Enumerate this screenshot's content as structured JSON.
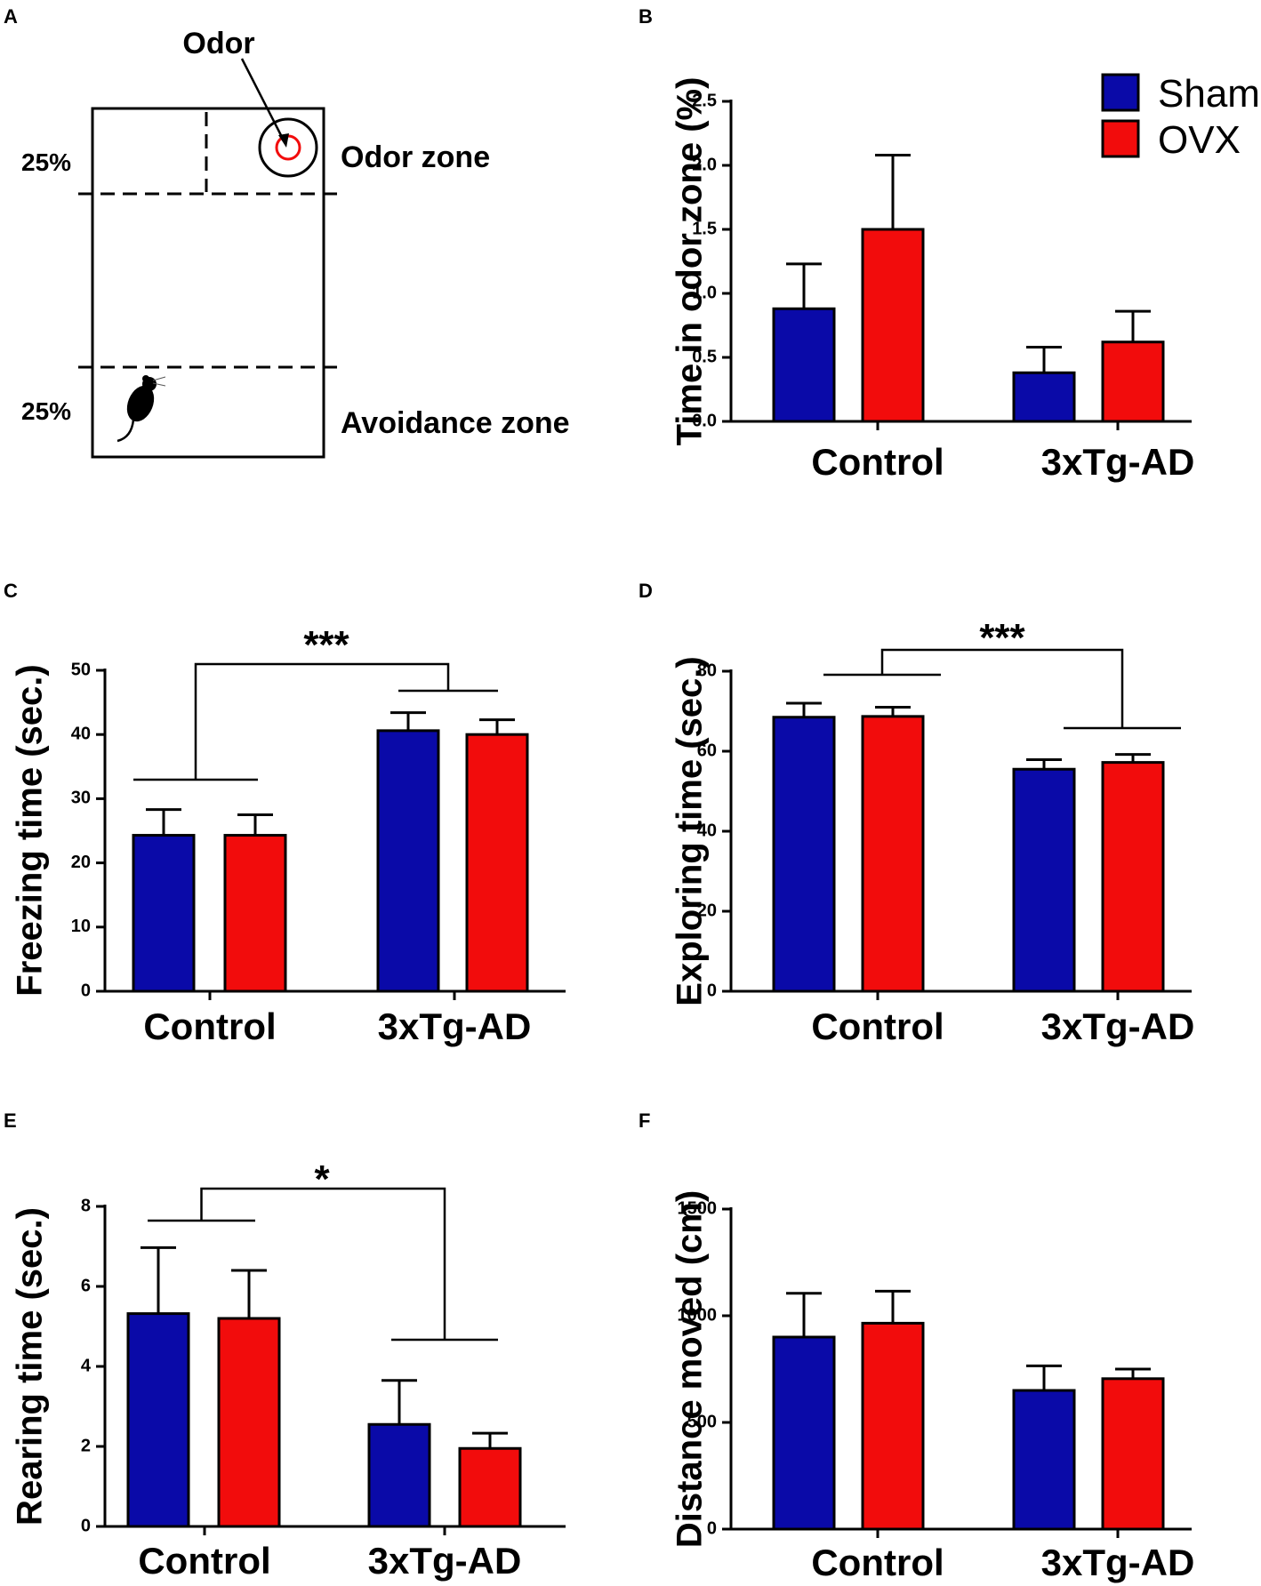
{
  "panel_a": {
    "letter": "A",
    "odor_label": "Odor",
    "odor_zone_label": "Odor zone",
    "avoidance_zone_label": "Avoidance zone",
    "pct_top": "25%",
    "pct_bottom": "25%"
  },
  "legend": {
    "items": [
      {
        "label": "Sham",
        "color": "#0a0aa8"
      },
      {
        "label": "OVX",
        "color": "#f20c0c"
      }
    ]
  },
  "colors": {
    "sham": "#0a0aa8",
    "ovx": "#f20c0c",
    "axis": "#000000"
  },
  "chart_data": [
    {
      "panel": "B",
      "type": "bar",
      "title": "",
      "categories": [
        "Control",
        "3xTg-AD"
      ],
      "ylabel": "Time in odor zone (%)",
      "ylim": [
        0,
        2.5
      ],
      "yticks": [
        "0.0",
        "0.5",
        "1.0",
        "1.5",
        "2.0",
        "2.5"
      ],
      "series": [
        {
          "name": "Sham",
          "values": [
            0.88,
            0.38
          ],
          "errors": [
            0.35,
            0.2
          ]
        },
        {
          "name": "OVX",
          "values": [
            1.5,
            0.62
          ],
          "errors": [
            0.58,
            0.24
          ]
        }
      ],
      "significance": []
    },
    {
      "panel": "C",
      "type": "bar",
      "title": "",
      "categories": [
        "Control",
        "3xTg-AD"
      ],
      "ylabel": "Freezing time (sec.)",
      "ylim": [
        0,
        50
      ],
      "yticks": [
        "0",
        "10",
        "20",
        "30",
        "40",
        "50"
      ],
      "series": [
        {
          "name": "Sham",
          "values": [
            24.3,
            40.6
          ],
          "errors": [
            4.0,
            2.8
          ]
        },
        {
          "name": "OVX",
          "values": [
            24.3,
            40.0
          ],
          "errors": [
            3.2,
            2.3
          ]
        }
      ],
      "significance": [
        "***"
      ]
    },
    {
      "panel": "D",
      "type": "bar",
      "title": "",
      "categories": [
        "Control",
        "3xTg-AD"
      ],
      "ylabel": "Exploring time (sec.)",
      "ylim": [
        0,
        80
      ],
      "yticks": [
        "0",
        "20",
        "40",
        "60",
        "80"
      ],
      "series": [
        {
          "name": "Sham",
          "values": [
            68.5,
            55.5
          ],
          "errors": [
            3.5,
            2.4
          ]
        },
        {
          "name": "OVX",
          "values": [
            68.7,
            57.2
          ],
          "errors": [
            2.3,
            2.0
          ]
        }
      ],
      "significance": [
        "***"
      ]
    },
    {
      "panel": "E",
      "type": "bar",
      "title": "",
      "categories": [
        "Control",
        "3xTg-AD"
      ],
      "ylabel": "Rearing time (sec.)",
      "ylim": [
        0,
        8
      ],
      "yticks": [
        "0",
        "2",
        "4",
        "6",
        "8"
      ],
      "series": [
        {
          "name": "Sham",
          "values": [
            5.32,
            2.55
          ],
          "errors": [
            1.65,
            1.1
          ]
        },
        {
          "name": "OVX",
          "values": [
            5.2,
            1.95
          ],
          "errors": [
            1.2,
            0.38
          ]
        }
      ],
      "significance": [
        "*"
      ]
    },
    {
      "panel": "F",
      "type": "bar",
      "title": "",
      "categories": [
        "Control",
        "3xTg-AD"
      ],
      "ylabel": "Distance moved (cm)",
      "ylim": [
        0,
        1500
      ],
      "yticks": [
        "0",
        "500",
        "1000",
        "1500"
      ],
      "series": [
        {
          "name": "Sham",
          "values": [
            900,
            650
          ],
          "errors": [
            205,
            115
          ]
        },
        {
          "name": "OVX",
          "values": [
            965,
            705
          ],
          "errors": [
            150,
            45
          ]
        }
      ],
      "significance": []
    }
  ]
}
